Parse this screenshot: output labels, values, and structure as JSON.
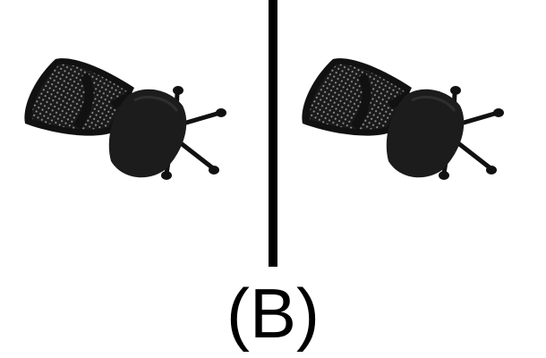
{
  "option_label": "(B)",
  "images": [
    {
      "icon": "office-chair-icon",
      "color": "#1c1c1c"
    },
    {
      "icon": "office-chair-icon",
      "color": "#1c1c1c"
    }
  ],
  "divider_color": "#000000"
}
